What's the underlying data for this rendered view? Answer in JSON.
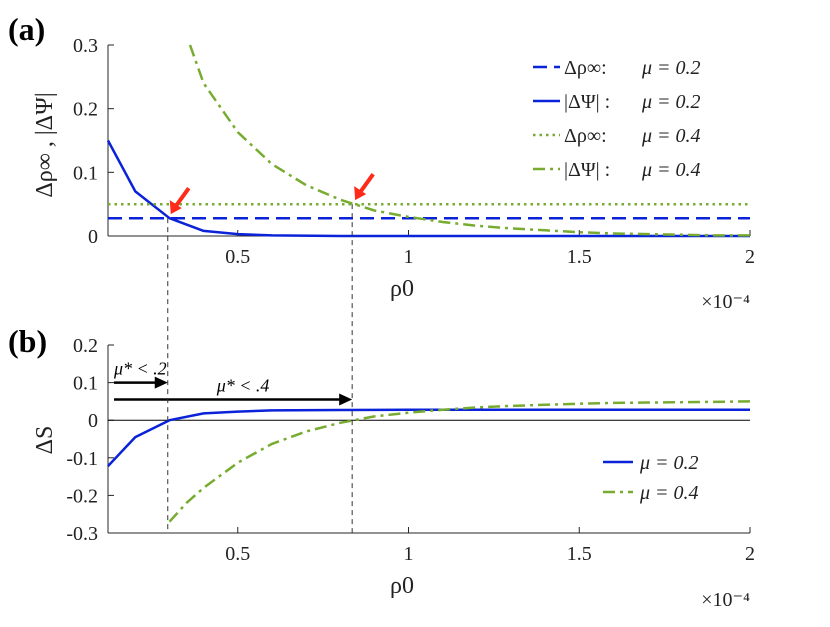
{
  "colors": {
    "blue": "#0a22d8",
    "green": "#77ac30",
    "red": "#ff2a1a",
    "axis": "#262626"
  },
  "chart_data": [
    {
      "panel": "(a)",
      "type": "line",
      "ylabel": "Δρ∞ , |ΔΨ|",
      "xlabel": "ρ0",
      "x_multiplier": "×10⁻⁴",
      "xlim": [
        0.12,
        2.0
      ],
      "ylim": [
        0,
        0.3
      ],
      "xticks": [
        0.5,
        1,
        1.5,
        2
      ],
      "xtick_labels": [
        "0.5",
        "1",
        "1.5",
        "2"
      ],
      "yticks": [
        0,
        0.1,
        0.2,
        0.3
      ],
      "ytick_labels": [
        "0",
        "0.1",
        "0.2",
        "0.3"
      ],
      "legend_position": "top-right",
      "series": [
        {
          "name": "Δρ∞:  μ = 0.2",
          "legend": [
            "Δρ∞:",
            "μ = 0.2"
          ],
          "color": "#0a22d8",
          "dash": "dashed",
          "width": 2.5,
          "x": [
            0.12,
            2.0
          ],
          "y": [
            0.028,
            0.028
          ]
        },
        {
          "name": "|ΔΨ| :  μ = 0.2",
          "legend": [
            "|ΔΨ| :",
            "μ = 0.2"
          ],
          "color": "#0a22d8",
          "dash": "solid",
          "width": 2.5,
          "x": [
            0.12,
            0.2,
            0.3,
            0.4,
            0.5,
            0.6,
            0.8,
            1.0,
            1.5,
            2.0
          ],
          "y": [
            0.15,
            0.07,
            0.028,
            0.008,
            0.003,
            0.001,
            0.0,
            0.0,
            0.0,
            0.0
          ]
        },
        {
          "name": "Δρ∞:  μ = 0.4",
          "legend": [
            "Δρ∞:",
            "μ = 0.4"
          ],
          "color": "#77ac30",
          "dash": "dotted",
          "width": 2.5,
          "x": [
            0.12,
            2.0
          ],
          "y": [
            0.05,
            0.05
          ]
        },
        {
          "name": "|ΔΨ| :  μ = 0.4",
          "legend": [
            "|ΔΨ| :",
            "μ = 0.4"
          ],
          "color": "#77ac30",
          "dash": "dashdot",
          "width": 2.5,
          "x": [
            0.36,
            0.4,
            0.5,
            0.6,
            0.7,
            0.8,
            0.9,
            1.0,
            1.1,
            1.2,
            1.3,
            1.4,
            1.5,
            1.6,
            1.7,
            1.8,
            1.9,
            2.0
          ],
          "y": [
            0.3,
            0.24,
            0.163,
            0.113,
            0.08,
            0.057,
            0.04,
            0.03,
            0.022,
            0.016,
            0.012,
            0.009,
            0.006,
            0.004,
            0.003,
            0.002,
            0.001,
            0.001
          ]
        }
      ],
      "markers": [
        {
          "x": 0.295,
          "y": 0.028
        },
        {
          "x": 0.835,
          "y": 0.05
        }
      ]
    },
    {
      "panel": "(b)",
      "type": "line",
      "ylabel": "ΔS",
      "xlabel": "ρ0",
      "x_multiplier": "×10⁻⁴",
      "xlim": [
        0.12,
        2.0
      ],
      "ylim": [
        -0.3,
        0.2
      ],
      "xticks": [
        0.5,
        1,
        1.5,
        2
      ],
      "xtick_labels": [
        "0.5",
        "1",
        "1.5",
        "2"
      ],
      "yticks": [
        -0.3,
        -0.2,
        -0.1,
        0,
        0.1,
        0.2
      ],
      "ytick_labels": [
        "-0.3",
        "-0.2",
        "-0.1",
        "0",
        "0.1",
        "0.2"
      ],
      "legend_position": "bottom-right",
      "zero_line": true,
      "series": [
        {
          "name": "μ = 0.2",
          "color": "#0a22d8",
          "dash": "solid",
          "width": 2.5,
          "x": [
            0.12,
            0.2,
            0.3,
            0.4,
            0.5,
            0.6,
            0.8,
            1.0,
            1.5,
            2.0
          ],
          "y": [
            -0.122,
            -0.045,
            0.0,
            0.018,
            0.023,
            0.026,
            0.027,
            0.028,
            0.028,
            0.028
          ]
        },
        {
          "name": "μ = 0.4",
          "color": "#77ac30",
          "dash": "dashdot",
          "width": 2.5,
          "x": [
            0.3,
            0.35,
            0.4,
            0.5,
            0.6,
            0.7,
            0.8,
            0.9,
            1.0,
            1.1,
            1.2,
            1.3,
            1.4,
            1.5,
            1.6,
            1.8,
            2.0
          ],
          "y": [
            -0.27,
            -0.22,
            -0.18,
            -0.113,
            -0.063,
            -0.03,
            -0.007,
            0.01,
            0.02,
            0.028,
            0.034,
            0.038,
            0.041,
            0.044,
            0.046,
            0.048,
            0.05
          ]
        }
      ],
      "annotations": [
        {
          "text": "μ* < .2",
          "x_from": 0.12,
          "x_to": 0.295,
          "y": 0.1
        },
        {
          "text": "μ* < .4",
          "x_from": 0.12,
          "x_to": 0.835,
          "y": 0.055
        }
      ]
    }
  ]
}
